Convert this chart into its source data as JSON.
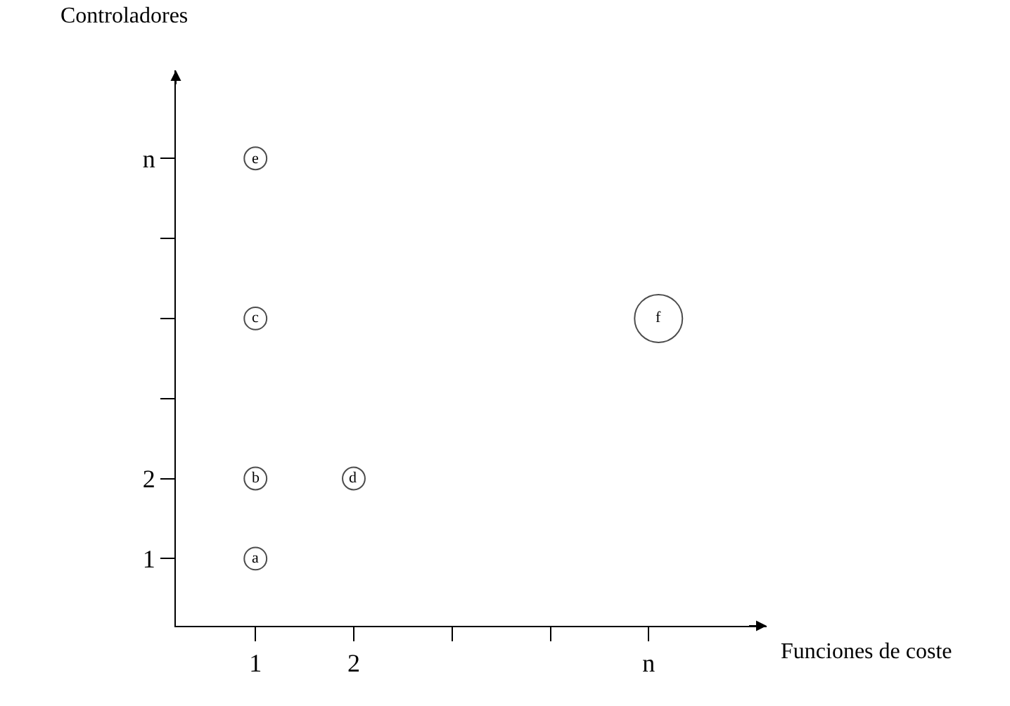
{
  "chart_data": {
    "type": "bubble",
    "xlabel": "Funciones de coste",
    "ylabel": "Controladores",
    "x": [
      1,
      1,
      1,
      2,
      1,
      5.1
    ],
    "values": [
      1,
      2,
      4,
      2,
      6,
      4
    ],
    "sizes": [
      0.22,
      0.22,
      0.22,
      0.22,
      0.22,
      1
    ],
    "color": "#000000",
    "marker": "circle",
    "annotations": [
      {
        "text": "a",
        "x": 1,
        "y": 1
      },
      {
        "text": "b",
        "x": 1,
        "y": 2
      },
      {
        "text": "c",
        "x": 1,
        "y": 4
      },
      {
        "text": "d",
        "x": 2,
        "y": 2
      },
      {
        "text": "e",
        "x": 1,
        "y": 6
      },
      {
        "text": "f",
        "x": 5.1,
        "y": 4
      }
    ],
    "xlim": [
      0.19,
      6.2
    ],
    "ylim": [
      0.16,
      7.1
    ],
    "xticks": [
      1,
      2,
      {
        "value": 3,
        "label": null
      },
      {
        "value": 4,
        "label": null
      },
      {
        "value": 5,
        "label": "n"
      }
    ],
    "yticks": [
      1,
      2,
      {
        "value": 3,
        "label": null
      },
      {
        "value": 4,
        "label": null
      },
      {
        "value": 5,
        "label": null
      },
      {
        "value": 6,
        "label": "n"
      }
    ]
  }
}
